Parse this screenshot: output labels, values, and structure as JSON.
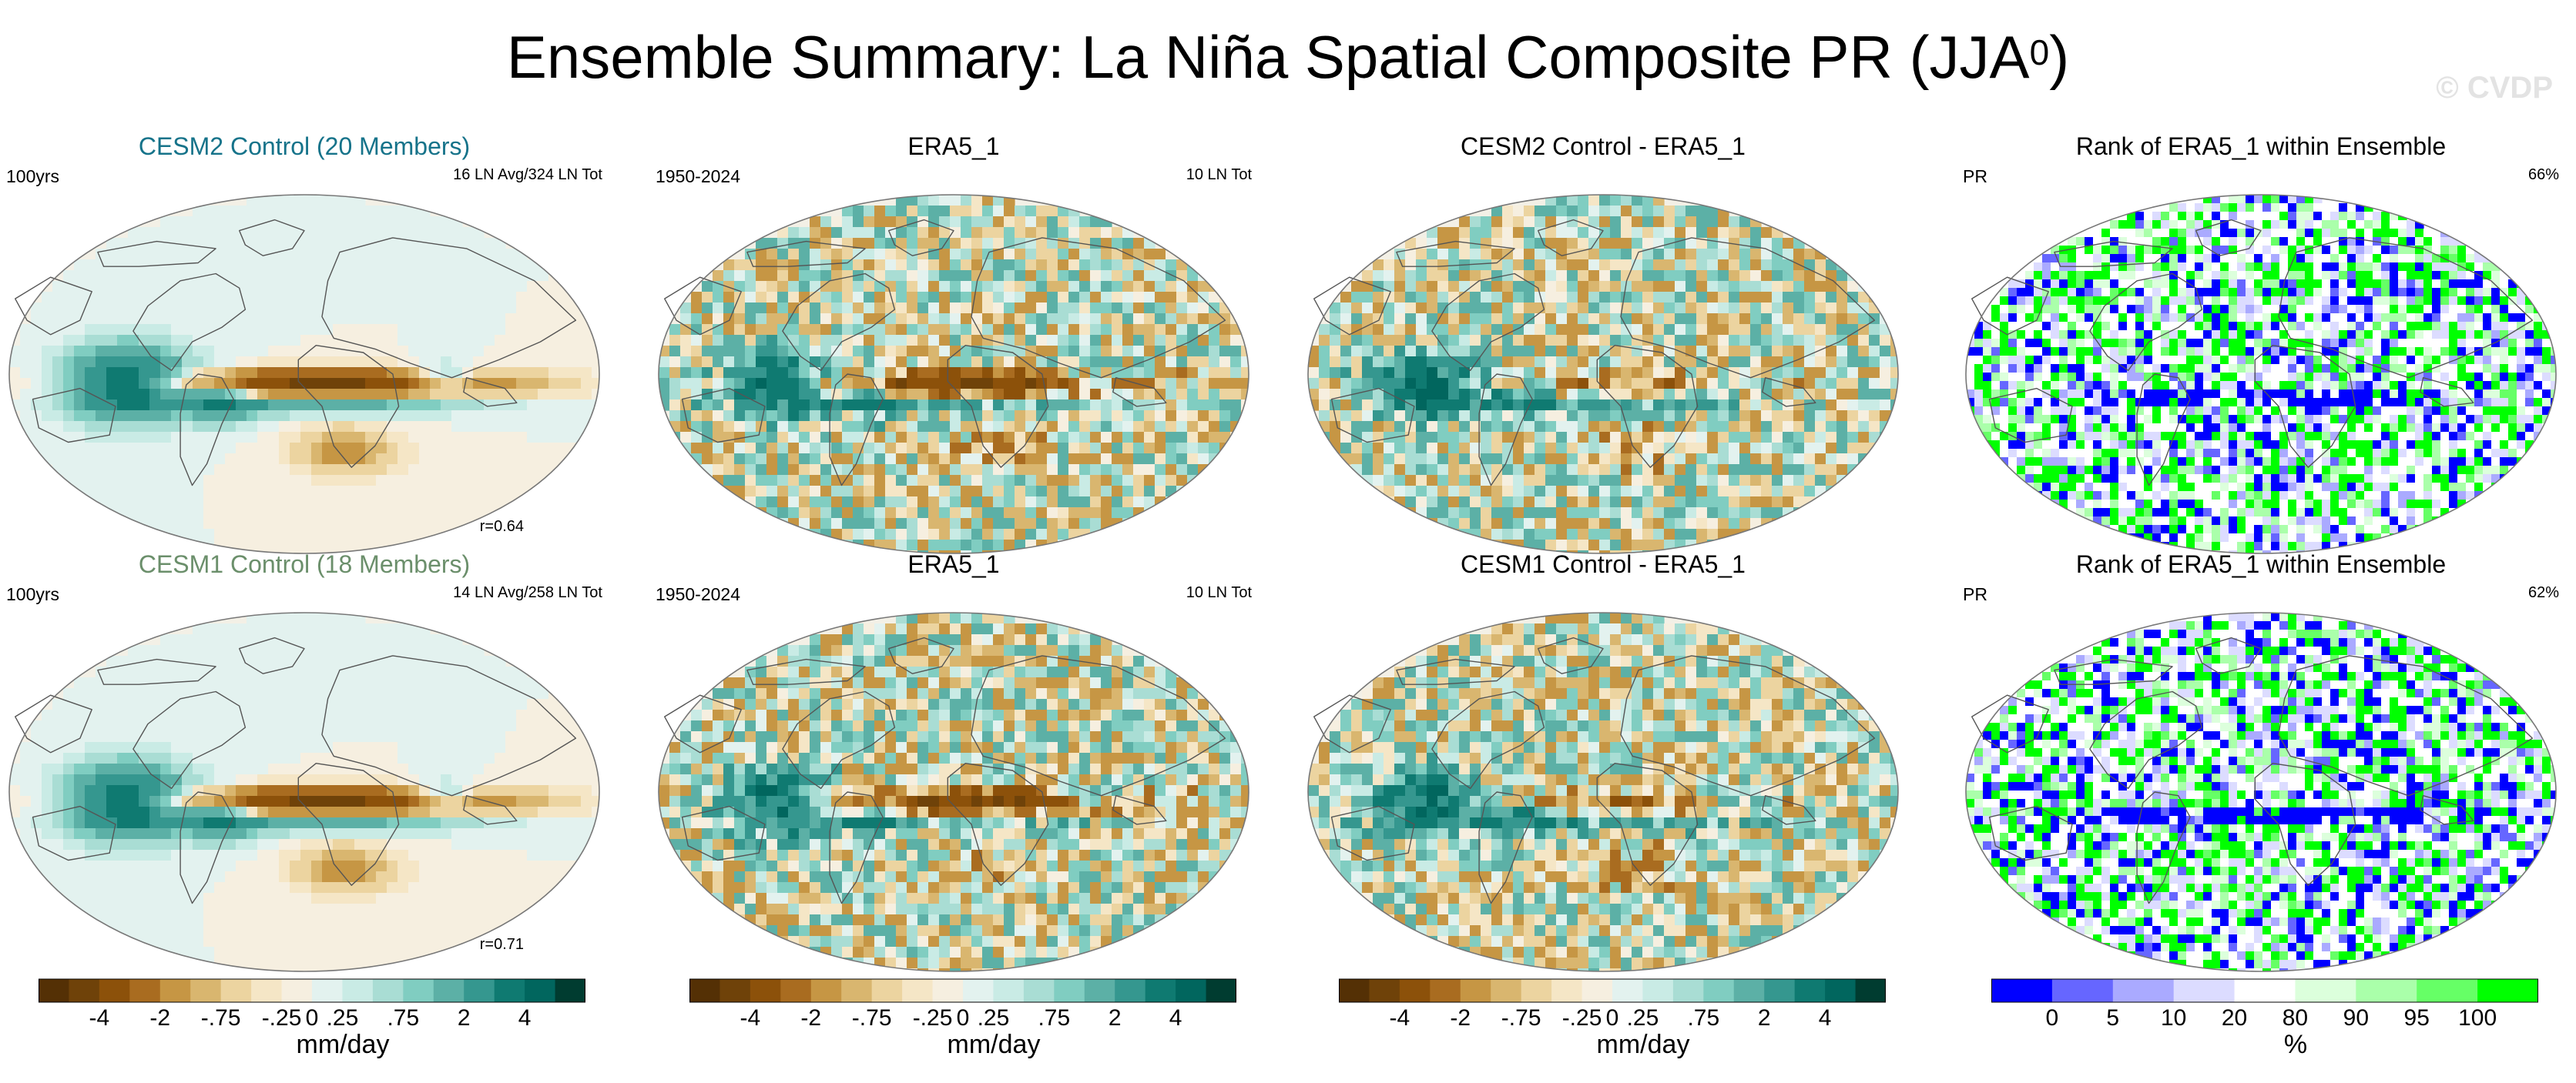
{
  "title": {
    "main": "Ensemble Summary: La Niña Spatial Composite PR (JJA",
    "sup": "0",
    "close": ")"
  },
  "watermark": "© CVDP",
  "colors": {
    "pr_scale": [
      "#543005",
      "#6f4209",
      "#8c510a",
      "#a96c20",
      "#c69644",
      "#d9b66f",
      "#ecd4a0",
      "#f5e6c6",
      "#f6efe0",
      "#e3f2ef",
      "#c9ebe5",
      "#a9ddd4",
      "#80cdc1",
      "#5cb0a6",
      "#35978f",
      "#0f7a71",
      "#01665e",
      "#003c30"
    ],
    "rank_scale": [
      "#0000ff",
      "#6666ff",
      "#aaaaff",
      "#dcdcff",
      "#ffffff",
      "#dcffdc",
      "#aaffaa",
      "#66ff66",
      "#00ff00"
    ]
  },
  "panels": [
    {
      "id": "p1",
      "title": "CESM2 Control (20 Members)",
      "style": "c2",
      "left_label": "100yrs",
      "right_label": "16 LN Avg/324 LN Tot",
      "corr": "r=0.64",
      "kind": "model",
      "seed": 11
    },
    {
      "id": "p2",
      "title": "ERA5_1",
      "style": "",
      "left_label": "1950-2024",
      "right_label": "10 LN Tot",
      "corr": "",
      "kind": "obs",
      "seed": 23
    },
    {
      "id": "p3",
      "title": "CESM2 Control - ERA5_1",
      "style": "",
      "left_label": "",
      "right_label": "",
      "corr": "",
      "kind": "diff",
      "seed": 37
    },
    {
      "id": "p4",
      "title": "Rank of ERA5_1 within Ensemble",
      "style": "",
      "left_label": "PR",
      "right_label": "66%",
      "corr": "",
      "kind": "rank",
      "seed": 41
    },
    {
      "id": "p5",
      "title": "CESM1 Control (18 Members)",
      "style": "c1",
      "left_label": "100yrs",
      "right_label": "14 LN Avg/258 LN Tot",
      "corr": "r=0.71",
      "kind": "model",
      "seed": 53
    },
    {
      "id": "p6",
      "title": "ERA5_1",
      "style": "",
      "left_label": "1950-2024",
      "right_label": "10 LN Tot",
      "corr": "",
      "kind": "obs",
      "seed": 67
    },
    {
      "id": "p7",
      "title": "CESM1 Control - ERA5_1",
      "style": "",
      "left_label": "",
      "right_label": "",
      "corr": "",
      "kind": "diff",
      "seed": 71
    },
    {
      "id": "p8",
      "title": "Rank of ERA5_1 within Ensemble",
      "style": "",
      "left_label": "PR",
      "right_label": "62%",
      "corr": "",
      "kind": "rank",
      "seed": 83
    }
  ],
  "colorbars": [
    {
      "id": "cb1",
      "kind": "pr",
      "ticks": [
        "-4",
        "-2",
        "-.75",
        "-.25",
        "0",
        ".25",
        ".75",
        "2",
        "4"
      ],
      "units": "mm/day"
    },
    {
      "id": "cb2",
      "kind": "pr",
      "ticks": [
        "-4",
        "-2",
        "-.75",
        "-.25",
        "0",
        ".25",
        ".75",
        "2",
        "4"
      ],
      "units": "mm/day"
    },
    {
      "id": "cb3",
      "kind": "pr",
      "ticks": [
        "-4",
        "-2",
        "-.75",
        "-.25",
        "0",
        ".25",
        ".75",
        "2",
        "4"
      ],
      "units": "mm/day"
    },
    {
      "id": "cb4",
      "kind": "rank",
      "ticks": [
        "0",
        "5",
        "10",
        "20",
        "80",
        "90",
        "95",
        "100"
      ],
      "units": "%"
    }
  ],
  "chart_data": {
    "type": "heatmap",
    "title": "Ensemble Summary: La Niña Spatial Composite PR (JJA0)",
    "variable": "PR",
    "season": "JJA",
    "units": "mm/day",
    "pr_levels": [
      -4,
      -2,
      -0.75,
      -0.25,
      0,
      0.25,
      0.75,
      2,
      4
    ],
    "rank_levels_percent": [
      0,
      5,
      10,
      20,
      80,
      90,
      95,
      100
    ],
    "panels": [
      {
        "row": 1,
        "col": 1,
        "title": "CESM2 Control (20 Members)",
        "period": "100yrs",
        "events": "16 LN Avg/324 LN Tot",
        "pattern_correlation": 0.64
      },
      {
        "row": 1,
        "col": 2,
        "title": "ERA5_1",
        "period": "1950-2024",
        "events": "10 LN Tot"
      },
      {
        "row": 1,
        "col": 3,
        "title": "CESM2 Control - ERA5_1"
      },
      {
        "row": 1,
        "col": 4,
        "title": "Rank of ERA5_1 within Ensemble",
        "percent_within_10_90": 66
      },
      {
        "row": 2,
        "col": 1,
        "title": "CESM1 Control (18 Members)",
        "period": "100yrs",
        "events": "14 LN Avg/258 LN Tot",
        "pattern_correlation": 0.71
      },
      {
        "row": 2,
        "col": 2,
        "title": "ERA5_1",
        "period": "1950-2024",
        "events": "10 LN Tot"
      },
      {
        "row": 2,
        "col": 3,
        "title": "CESM1 Control - ERA5_1"
      },
      {
        "row": 2,
        "col": 4,
        "title": "Rank of ERA5_1 within Ensemble",
        "percent_within_10_90": 62
      }
    ]
  }
}
